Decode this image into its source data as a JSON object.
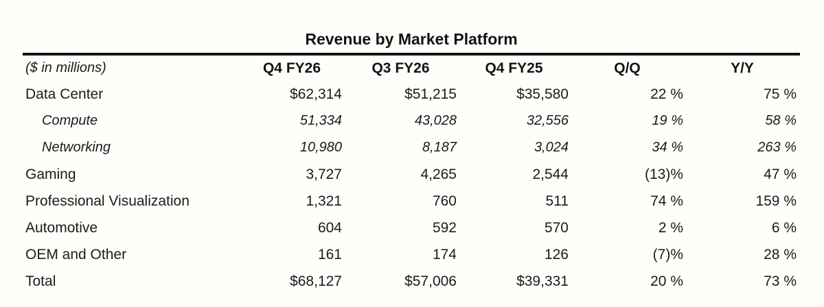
{
  "chart_data": {
    "type": "table",
    "title": "Revenue by Market Platform",
    "unit_note": "($ in millions)",
    "columns": [
      "Q4 FY26",
      "Q3 FY26",
      "Q4 FY25",
      "Q/Q",
      "Y/Y"
    ],
    "rows": [
      {
        "label": "Data Center",
        "style": "normal",
        "values": [
          "$62,314",
          "$51,215",
          "$35,580",
          "22 %",
          "75 %"
        ]
      },
      {
        "label": "Compute",
        "style": "italic-sub",
        "values": [
          "51,334",
          "43,028",
          "32,556",
          "19 %",
          "58 %"
        ]
      },
      {
        "label": "Networking",
        "style": "italic-sub",
        "values": [
          "10,980",
          "8,187",
          "3,024",
          "34 %",
          "263 %"
        ]
      },
      {
        "label": "Gaming",
        "style": "normal",
        "values": [
          "3,727",
          "4,265",
          "2,544",
          "(13)%",
          "47 %"
        ]
      },
      {
        "label": "Professional Visualization",
        "style": "normal",
        "values": [
          "1,321",
          "760",
          "511",
          "74 %",
          "159 %"
        ]
      },
      {
        "label": "Automotive",
        "style": "normal",
        "values": [
          "604",
          "592",
          "570",
          "2 %",
          "6 %"
        ]
      },
      {
        "label": "OEM and Other",
        "style": "normal",
        "values": [
          "161",
          "174",
          "126",
          "(7)%",
          "28 %"
        ]
      },
      {
        "label": "Total",
        "style": "normal",
        "values": [
          "$68,127",
          "$57,006",
          "$39,331",
          "20 %",
          "73 %"
        ]
      }
    ]
  },
  "colors": {
    "text": "#1b1b1b",
    "heading": "#131313",
    "rule": "#131313",
    "background": "#fffefb"
  }
}
